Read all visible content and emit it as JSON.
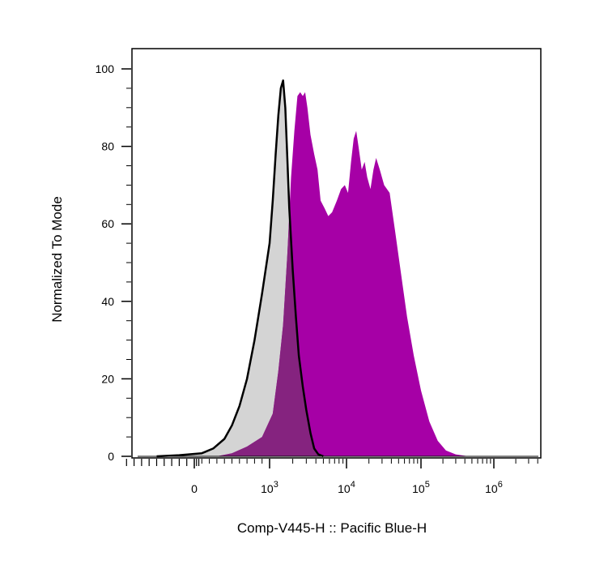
{
  "chart_data": {
    "type": "area",
    "xlabel": "Comp-V445-H :: Pacific Blue-H",
    "ylabel": "Normalized To Mode",
    "x_scale": "biexponential",
    "x_ticks": [
      {
        "value": 0,
        "base": "0",
        "exp": ""
      },
      {
        "value": 1000,
        "base": "10",
        "exp": "3"
      },
      {
        "value": 10000,
        "base": "10",
        "exp": "4"
      },
      {
        "value": 100000,
        "base": "10",
        "exp": "5"
      },
      {
        "value": 1000000,
        "base": "10",
        "exp": "6"
      }
    ],
    "y_ticks": [
      "0",
      "20",
      "40",
      "60",
      "80",
      "100"
    ],
    "ylim": [
      0,
      100
    ],
    "grid": false,
    "series": [
      {
        "style": "gray-filled-black-outline",
        "fill": "#d4d4d4",
        "stroke": "#000000",
        "points": [
          [
            -500,
            0
          ],
          [
            -200,
            0.3
          ],
          [
            100,
            0.8
          ],
          [
            250,
            2
          ],
          [
            400,
            4.5
          ],
          [
            500,
            8
          ],
          [
            600,
            13
          ],
          [
            700,
            20
          ],
          [
            800,
            30
          ],
          [
            900,
            42
          ],
          [
            1000,
            55
          ],
          [
            1100,
            66
          ],
          [
            1200,
            78
          ],
          [
            1300,
            88
          ],
          [
            1400,
            95
          ],
          [
            1500,
            97
          ],
          [
            1600,
            90
          ],
          [
            1700,
            77
          ],
          [
            1800,
            64
          ],
          [
            2000,
            48
          ],
          [
            2200,
            36
          ],
          [
            2400,
            26
          ],
          [
            2700,
            18
          ],
          [
            3000,
            12
          ],
          [
            3400,
            6
          ],
          [
            3800,
            2
          ],
          [
            4300,
            0.5
          ],
          [
            5000,
            0
          ]
        ]
      },
      {
        "style": "magenta-filled",
        "fill": "#a600a6",
        "stroke": "#a600a6",
        "points": [
          [
            300,
            0
          ],
          [
            500,
            0.8
          ],
          [
            700,
            2.5
          ],
          [
            900,
            5
          ],
          [
            1100,
            11
          ],
          [
            1300,
            22
          ],
          [
            1500,
            34
          ],
          [
            1700,
            52
          ],
          [
            1900,
            72
          ],
          [
            2100,
            84
          ],
          [
            2300,
            93
          ],
          [
            2500,
            94
          ],
          [
            2700,
            93
          ],
          [
            2900,
            94
          ],
          [
            3100,
            90
          ],
          [
            3400,
            83
          ],
          [
            3800,
            78
          ],
          [
            4200,
            74
          ],
          [
            4600,
            66
          ],
          [
            5200,
            64
          ],
          [
            5800,
            62
          ],
          [
            6500,
            63
          ],
          [
            7500,
            66
          ],
          [
            8500,
            69
          ],
          [
            9500,
            70
          ],
          [
            10500,
            68
          ],
          [
            11500,
            76
          ],
          [
            12500,
            82
          ],
          [
            13500,
            84
          ],
          [
            14500,
            80
          ],
          [
            16000,
            74
          ],
          [
            17500,
            76
          ],
          [
            19000,
            72
          ],
          [
            21000,
            69
          ],
          [
            23000,
            74
          ],
          [
            25000,
            77
          ],
          [
            28000,
            74
          ],
          [
            32000,
            70
          ],
          [
            38000,
            68
          ],
          [
            45000,
            58
          ],
          [
            55000,
            46
          ],
          [
            65000,
            36
          ],
          [
            80000,
            26
          ],
          [
            100000,
            17
          ],
          [
            130000,
            9
          ],
          [
            170000,
            4
          ],
          [
            220000,
            1.5
          ],
          [
            300000,
            0.5
          ],
          [
            450000,
            0
          ]
        ]
      },
      {
        "style": "overlap",
        "fill": "#85237f",
        "stroke": "none",
        "points": [
          [
            300,
            0
          ],
          [
            500,
            0.8
          ],
          [
            700,
            2.5
          ],
          [
            900,
            5
          ],
          [
            1100,
            11
          ],
          [
            1300,
            22
          ],
          [
            1500,
            34
          ],
          [
            1700,
            52
          ],
          [
            1800,
            62
          ],
          [
            2000,
            48
          ],
          [
            2200,
            36
          ],
          [
            2400,
            26
          ],
          [
            2700,
            18
          ],
          [
            3000,
            12
          ],
          [
            3400,
            6
          ],
          [
            3800,
            2
          ],
          [
            4300,
            0.5
          ],
          [
            5000,
            0
          ]
        ]
      }
    ]
  }
}
